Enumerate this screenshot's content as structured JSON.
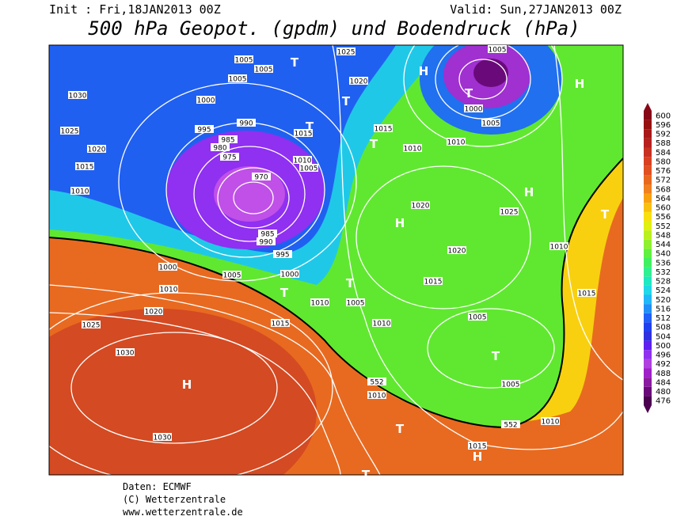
{
  "header": {
    "init": "Init : Fri,18JAN2013 00Z",
    "valid": "Valid: Sun,27JAN2013 00Z",
    "title": "500 hPa Geopot. (gpdm) und Bodendruck (hPa)"
  },
  "footer": {
    "source": "Daten: ECMWF",
    "copyright": "(C) Wetterzentrale",
    "url": "www.wetterzentrale.de"
  },
  "colorbar": {
    "levels": [
      476,
      480,
      484,
      488,
      492,
      496,
      500,
      504,
      508,
      512,
      516,
      520,
      524,
      528,
      532,
      536,
      540,
      544,
      548,
      552,
      556,
      560,
      564,
      568,
      572,
      576,
      580,
      584,
      588,
      592,
      596,
      600
    ],
    "colors": [
      "#4b0050",
      "#6a0a7a",
      "#8a1aa0",
      "#a020c8",
      "#b040e0",
      "#9030f0",
      "#6020f0",
      "#3030e0",
      "#2040f0",
      "#2060f8",
      "#2090f8",
      "#20b8f8",
      "#20d8e8",
      "#20e8c0",
      "#30f090",
      "#40f060",
      "#60f040",
      "#90f030",
      "#b8f020",
      "#e0f010",
      "#f8e010",
      "#f8c010",
      "#f8a010",
      "#f08020",
      "#e86820",
      "#e05020",
      "#d84020",
      "#c83020",
      "#b82020",
      "#a81818",
      "#981010",
      "#880818"
    ]
  },
  "map": {
    "labels": [
      "1030",
      "1025",
      "1020",
      "1015",
      "1010",
      "1005",
      "1005",
      "1005",
      "1000",
      "995",
      "990",
      "985",
      "980",
      "975",
      "970",
      "1010",
      "1005",
      "1015",
      "1020",
      "1025",
      "1015",
      "1010",
      "1005",
      "1000",
      "1005",
      "1010",
      "1020",
      "1025",
      "1020",
      "1010",
      "1015",
      "1015",
      "1005",
      "1010",
      "1005",
      "1010",
      "1015",
      "1000",
      "1000",
      "1005",
      "1010",
      "1020",
      "1025",
      "1030",
      "1030",
      "990",
      "995",
      "985",
      "1005",
      "1010",
      "552",
      "552",
      "1010",
      "1015",
      "H",
      "H",
      "H",
      "H",
      "H",
      "H",
      "T",
      "T",
      "T",
      "T",
      "T",
      "T",
      "T",
      "T",
      "T",
      "T",
      "T"
    ]
  }
}
